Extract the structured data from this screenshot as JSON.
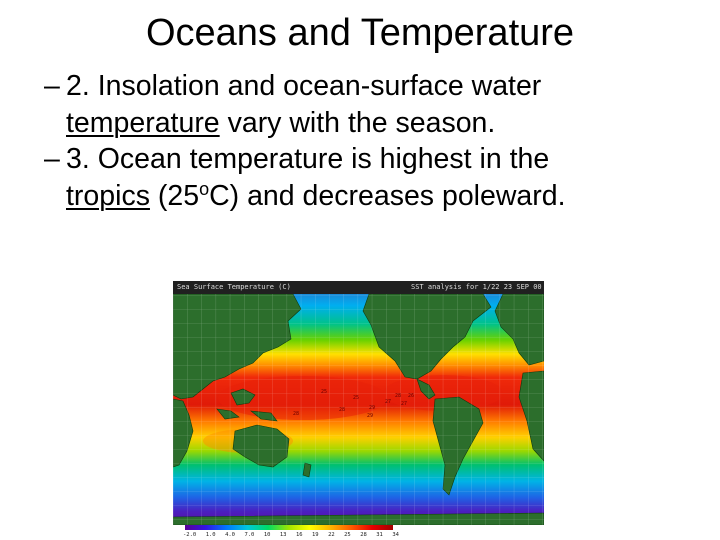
{
  "slide": {
    "title": "Oceans and Temperature",
    "bullets": [
      {
        "marker": "–",
        "number": "2.",
        "before": " Insolation and ocean-surface water",
        "underlined": "temperature",
        "after": " vary with the season."
      },
      {
        "marker": "–",
        "number": "3.",
        "before": " Ocean temperature is highest in the",
        "underlined": "tropics",
        "after_pre": " (25",
        "sup": "o",
        "after_post": "C) and decreases poleward."
      }
    ]
  },
  "map": {
    "title": "Sea Surface Temperature (C)",
    "analysis_label": "SST analysis for 1/22 23 SEP 00",
    "colorbar_ticks": [
      "-2.0",
      "1.0",
      "4.0",
      "7.0",
      "10",
      "13",
      "16",
      "19",
      "22",
      "25",
      "28",
      "31",
      "34"
    ],
    "contour_labels": [
      "25",
      "28",
      "29",
      "27",
      "29",
      "28",
      "27",
      "26",
      "25",
      "28"
    ],
    "colors": {
      "land": "#2c6e2c",
      "tropical_warm": "#e61a0a",
      "warm": "#ff8a00",
      "temperate": "#ffd800",
      "cool": "#00c060",
      "cold": "#00a8e0",
      "polar": "#5014b4"
    }
  }
}
